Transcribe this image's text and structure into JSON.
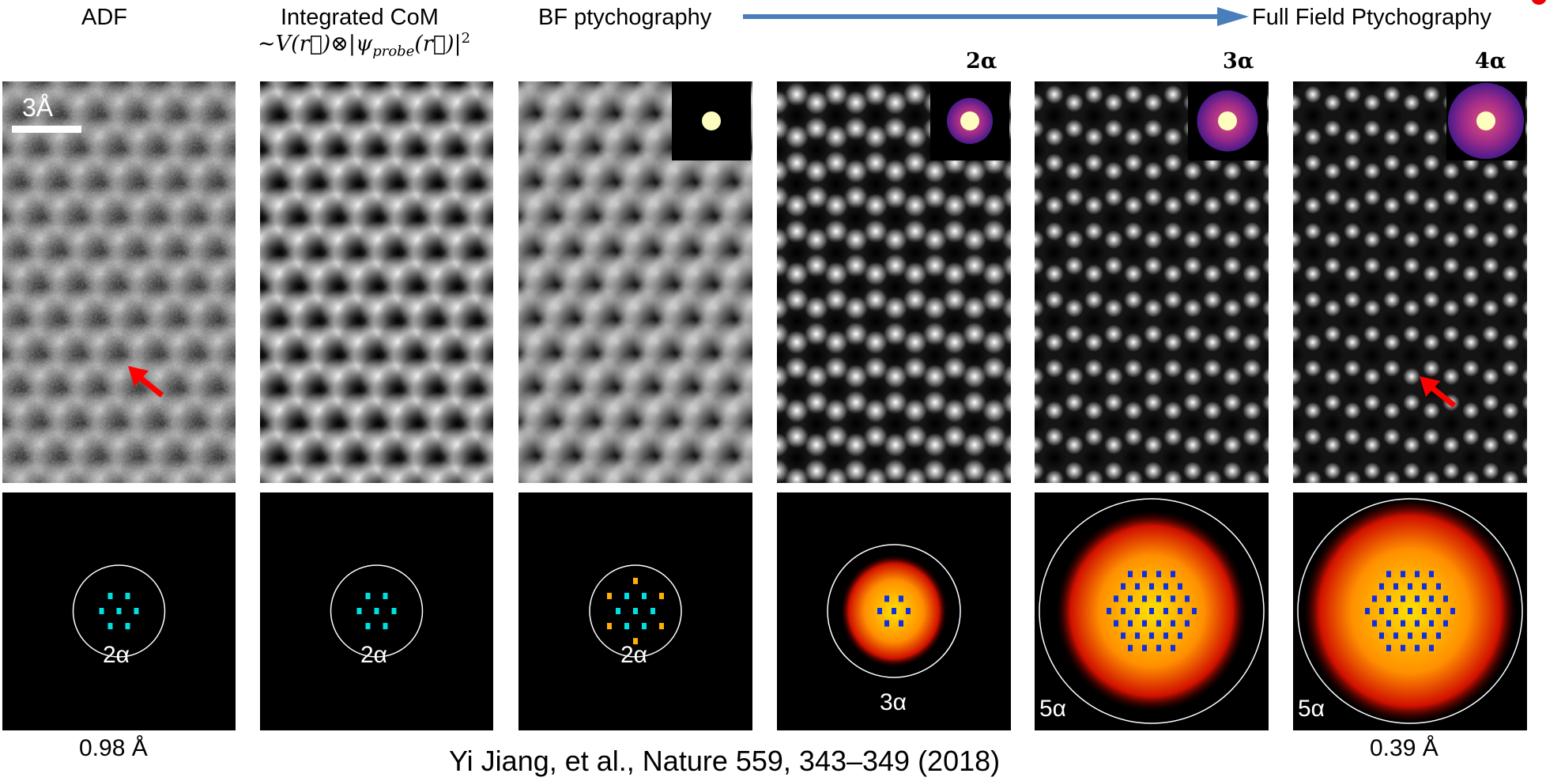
{
  "headers": {
    "adf": "ADF",
    "icom": "Integrated CoM",
    "bf": "BF ptychography",
    "ff": "Full Field Ptychography"
  },
  "formula": {
    "prefix": "~V(",
    "vec_r": "r⃗",
    "mid": ")⊗|ψ",
    "subscript": "probe",
    "open": "(",
    "close": ")|",
    "exponent": "2"
  },
  "probe_labels": [
    "2α",
    "3α",
    "4α"
  ],
  "scale_bar": "3Å",
  "diffraction_labels": [
    "2α",
    "2α",
    "2α",
    "3α",
    "5α",
    "5α"
  ],
  "resolution": {
    "left": "0.98 Å",
    "right": "0.39 Å"
  },
  "citation": "Yi Jiang, et al., Nature 559, 343–349 (2018)",
  "colors": {
    "arrow": "#4a7ebb",
    "marker": "#ff0000"
  }
}
